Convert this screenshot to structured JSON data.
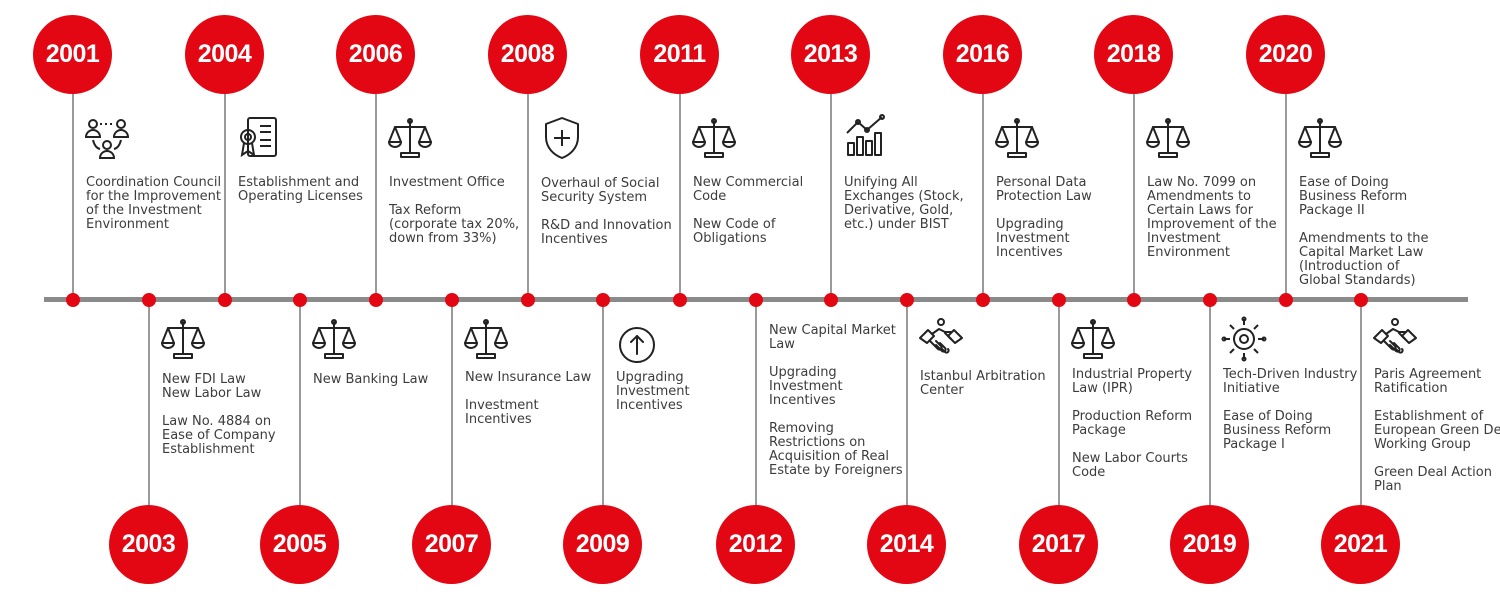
{
  "colors": {
    "accent": "#e30613",
    "axis": "#8a8a8a",
    "text": "#3c3c3c"
  },
  "events": [
    {
      "year": "2001",
      "icon": "network-people-icon",
      "items": [
        "Coordination Council for the Improvement of the Investment Environment"
      ]
    },
    {
      "year": "2003",
      "icon": "scales-icon",
      "items": [
        "New FDI Law\nNew Labor Law",
        "Law No. 4884 on Ease of Company Establishment"
      ]
    },
    {
      "year": "2004",
      "icon": "license-certificate-icon",
      "items": [
        "Establishment and Operating Licenses"
      ]
    },
    {
      "year": "2005",
      "icon": "scales-icon",
      "items": [
        "New Banking Law"
      ]
    },
    {
      "year": "2006",
      "icon": "scales-icon",
      "items": [
        "Investment Office",
        "Tax Reform (corporate tax 20%, down from 33%)"
      ]
    },
    {
      "year": "2007",
      "icon": "scales-icon",
      "items": [
        "New Insurance Law",
        "Investment Incentives"
      ]
    },
    {
      "year": "2008",
      "icon": "shield-plus-icon",
      "items": [
        "Overhaul of Social Security System",
        "R&D and Innovation Incentives"
      ]
    },
    {
      "year": "2009",
      "icon": "arrow-up-circle-icon",
      "items": [
        "Upgrading Investment Incentives"
      ]
    },
    {
      "year": "2011",
      "icon": "scales-icon",
      "items": [
        "New Commercial Code",
        "New Code of Obligations"
      ]
    },
    {
      "year": "2012",
      "icon": "",
      "items": [
        "New Capital Market Law",
        "Upgrading Investment Incentives",
        "Removing Restrictions on Acquisition of Real Estate by Foreigners"
      ]
    },
    {
      "year": "2013",
      "icon": "chart-trend-icon",
      "items": [
        "Unifying All Exchanges (Stock, Derivative, Gold, etc.) under BIST"
      ]
    },
    {
      "year": "2014",
      "icon": "handshake-icon",
      "items": [
        "Istanbul Arbitration Center"
      ]
    },
    {
      "year": "2016",
      "icon": "scales-icon",
      "items": [
        "Personal Data Protection Law",
        "Upgrading Investment Incentives"
      ]
    },
    {
      "year": "2017",
      "icon": "scales-icon",
      "items": [
        "Industrial Property Law (IPR)",
        "Production Reform Package",
        "New Labor Courts Code"
      ]
    },
    {
      "year": "2018",
      "icon": "scales-icon",
      "items": [
        "Law No. 7099 on Amendments to Certain Laws for Improvement of the Investment Environment"
      ]
    },
    {
      "year": "2019",
      "icon": "tech-gear-icon",
      "items": [
        "Tech-Driven Industry Initiative",
        "Ease of Doing Business Reform Package I"
      ]
    },
    {
      "year": "2020",
      "icon": "scales-icon",
      "items": [
        "Ease of Doing Business Reform Package II",
        "Amendments to the Capital Market Law (Introduction of Global Standards)"
      ]
    },
    {
      "year": "2021",
      "icon": "handshake-icon",
      "items": [
        "Paris Agreement Ratification",
        "Establishment of European Green Deal Working Group",
        "Green Deal Action Plan"
      ]
    }
  ]
}
